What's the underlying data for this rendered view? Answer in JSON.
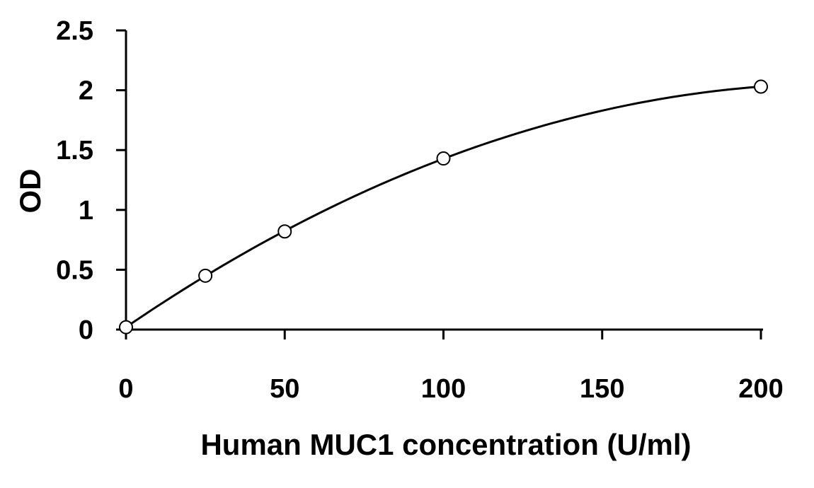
{
  "chart_data": {
    "type": "scatter",
    "title": "",
    "xlabel": "Human MUC1 concentration (U/ml)",
    "ylabel": "OD",
    "xlim": [
      0,
      200
    ],
    "ylim": [
      0,
      2.5
    ],
    "x_ticks": [
      "0",
      "50",
      "100",
      "150",
      "200"
    ],
    "y_ticks": [
      "0",
      "0.5",
      "1",
      "1.5",
      "2",
      "2.5"
    ],
    "grid": false,
    "legend": "none",
    "series": [
      {
        "x": [
          0,
          25,
          50,
          100,
          200
        ],
        "y": [
          0.02,
          0.45,
          0.82,
          1.43,
          2.03
        ],
        "marker": "open-circle",
        "trendline": "smooth-curve"
      }
    ],
    "colors": {
      "line": "#000000",
      "marker_fill": "#ffffff",
      "marker_stroke": "#000000"
    }
  }
}
